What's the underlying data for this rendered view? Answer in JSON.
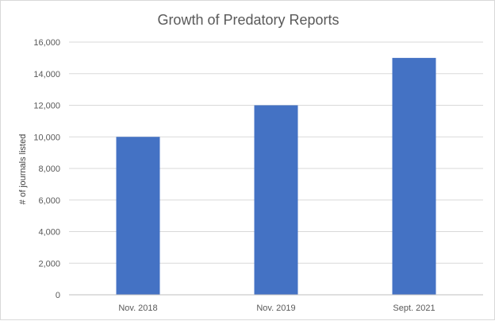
{
  "chart_data": {
    "type": "bar",
    "title": "Growth of Predatory Reports",
    "xlabel": "",
    "ylabel": "# of journals listed",
    "categories": [
      "Nov. 2018",
      "Nov. 2019",
      "Sept. 2021"
    ],
    "values": [
      10000,
      12000,
      15000
    ],
    "ylim": [
      0,
      16000
    ],
    "yticks": [
      0,
      2000,
      4000,
      6000,
      8000,
      10000,
      12000,
      14000,
      16000
    ],
    "ytick_labels": [
      "0",
      "2,000",
      "4,000",
      "6,000",
      "8,000",
      "10,000",
      "12,000",
      "14,000",
      "16,000"
    ],
    "grid": "horizontal",
    "legend": "none",
    "bar_color": "#4472c4",
    "grid_color": "#d9d9d9"
  }
}
